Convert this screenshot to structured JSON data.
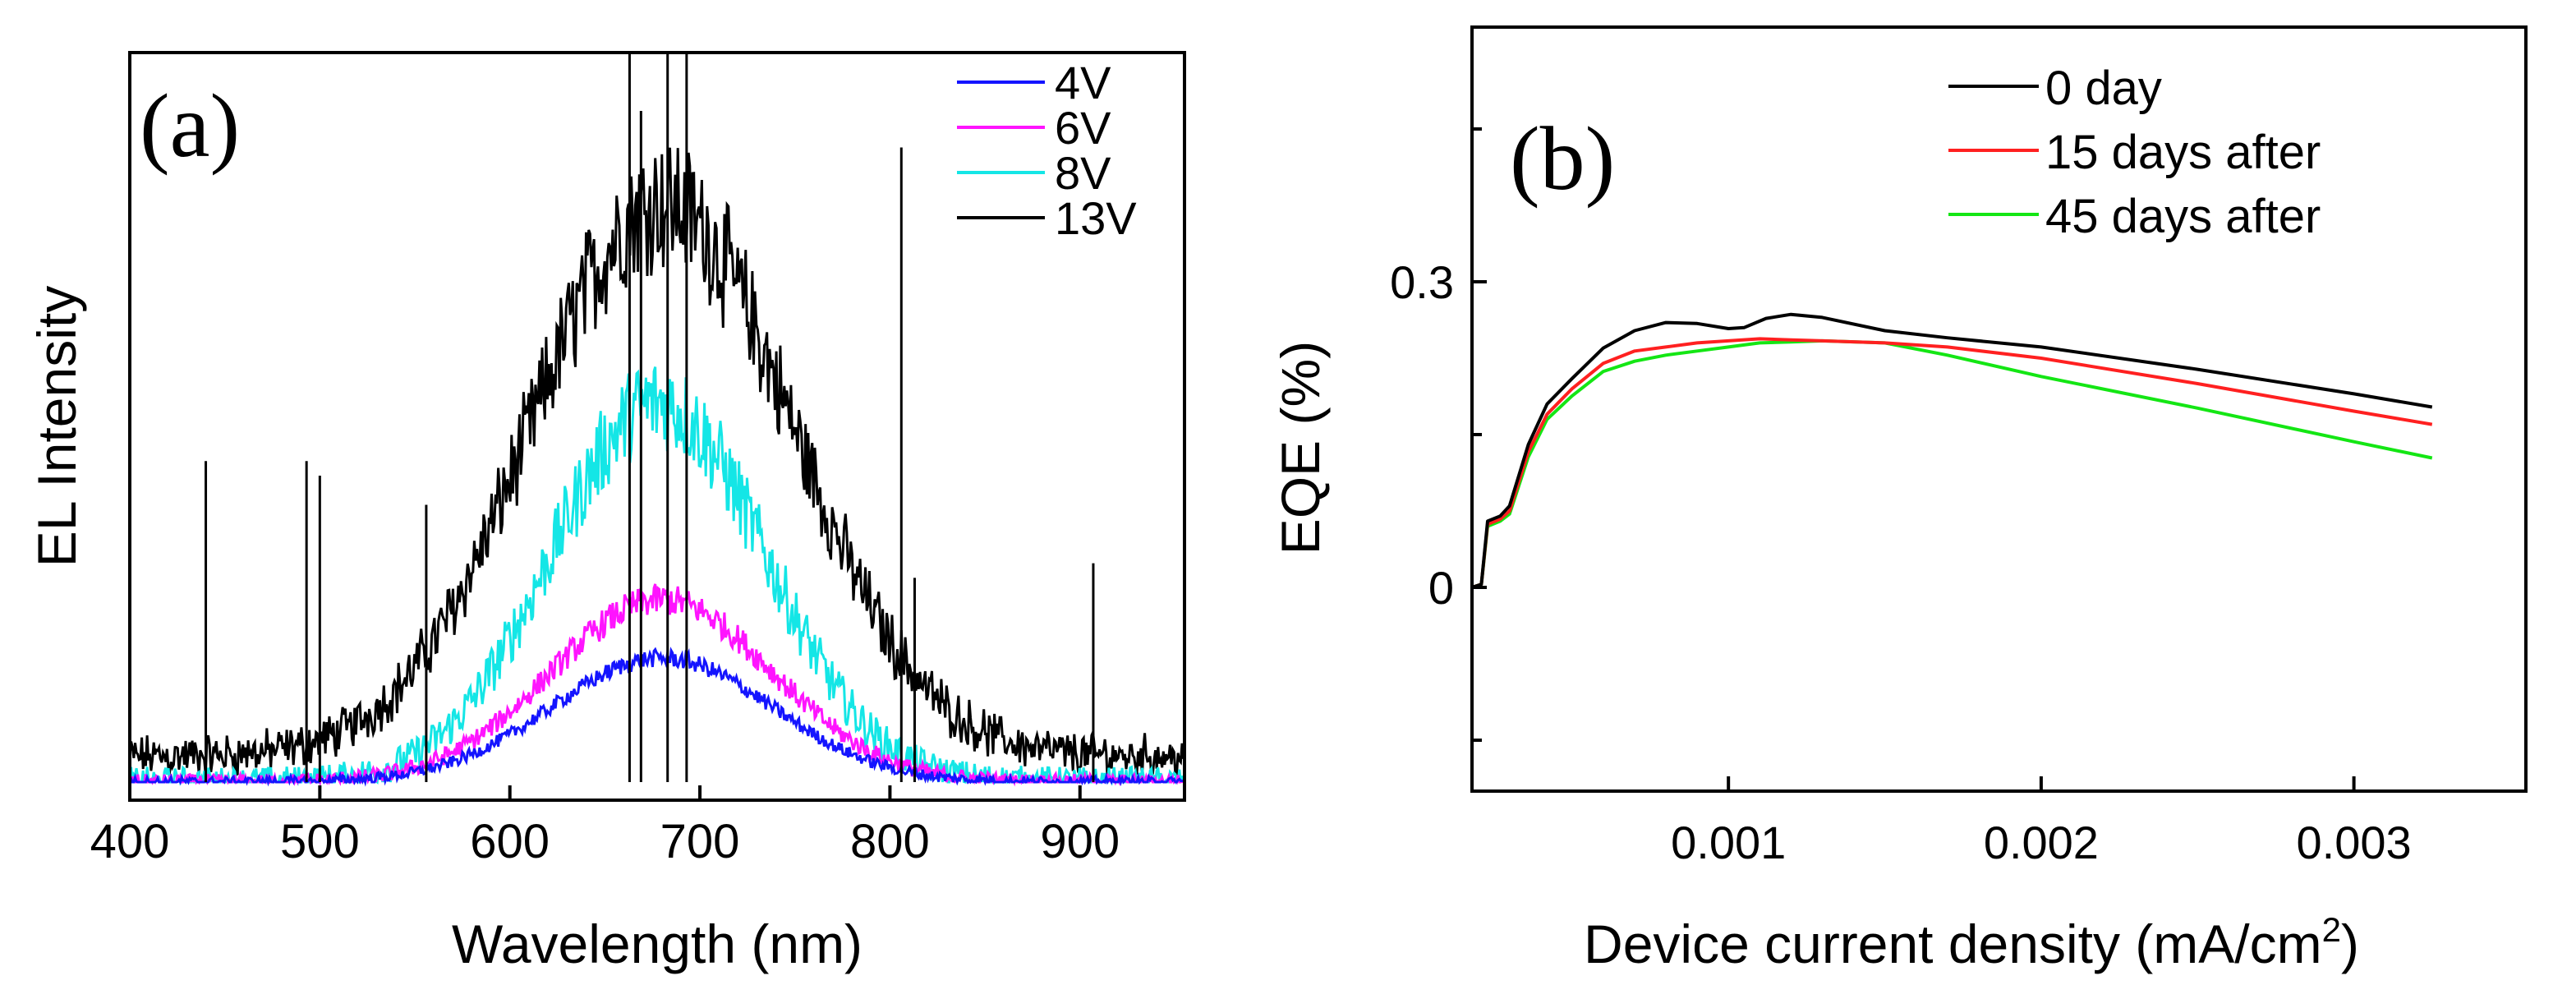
{
  "chart_data": [
    {
      "type": "line",
      "panel_label": "(a)",
      "xlabel": "Wavelength (nm)",
      "ylabel": "EL Intensity",
      "xlim": [
        400,
        955
      ],
      "ylim": [
        0,
        1.0
      ],
      "x_ticks": [
        400,
        500,
        600,
        700,
        800,
        900
      ],
      "legend_position": "top-right",
      "series": [
        {
          "name": "4V",
          "color": "#1414ff",
          "peak_wavelength": 680,
          "width": 58,
          "amplitude": 0.17,
          "noise": 0.012
        },
        {
          "name": "6V",
          "color": "#ff14ff",
          "peak_wavelength": 680,
          "width": 58,
          "amplitude": 0.25,
          "noise": 0.018
        },
        {
          "name": "8V",
          "color": "#14e6e6",
          "peak_wavelength": 678,
          "width": 56,
          "amplitude": 0.52,
          "noise": 0.035
        },
        {
          "name": "13V",
          "color": "#000000",
          "peak_wavelength": 680,
          "width": 68,
          "amplitude": 0.76,
          "noise": 0.035
        }
      ],
      "spikes": [
        {
          "x": 440,
          "height": 0.44
        },
        {
          "x": 493,
          "height": 0.44
        },
        {
          "x": 500,
          "height": 0.42
        },
        {
          "x": 556,
          "height": 0.38
        },
        {
          "x": 663,
          "height": 1.0
        },
        {
          "x": 669,
          "height": 0.92
        },
        {
          "x": 683,
          "height": 1.0
        },
        {
          "x": 693,
          "height": 1.0
        },
        {
          "x": 806,
          "height": 0.87
        },
        {
          "x": 813,
          "height": 0.28
        },
        {
          "x": 907,
          "height": 0.3
        }
      ]
    },
    {
      "type": "line",
      "panel_label": "(b)",
      "xlabel": "Device current density (mA/cm",
      "xlabel_superscript": "2",
      "xlabel_suffix": ")",
      "ylabel": "EQE (%)",
      "xlim": [
        0.00018,
        0.00355
      ],
      "ylim": [
        -0.2,
        0.55
      ],
      "x_ticks": [
        0.001,
        0.002,
        0.003
      ],
      "x_tick_labels": [
        "0.001",
        "0.002",
        "0.003"
      ],
      "y_ticks": [
        0,
        0.3
      ],
      "y_tick_labels": [
        "0",
        "0.3"
      ],
      "y_minor_ticks": [
        -0.15,
        0.15,
        0.45
      ],
      "legend_position": "top-right",
      "series": [
        {
          "name": "0 day",
          "color": "#000000",
          "x": [
            0.00018,
            0.00021,
            0.00023,
            0.00027,
            0.0003,
            0.00036,
            0.00042,
            0.0005,
            0.0006,
            0.0007,
            0.0008,
            0.0009,
            0.001,
            0.00105,
            0.00112,
            0.0012,
            0.0013,
            0.0015,
            0.0017,
            0.002,
            0.0025,
            0.003,
            0.00325
          ],
          "values": [
            0.0,
            0.003,
            0.065,
            0.07,
            0.08,
            0.14,
            0.18,
            0.205,
            0.235,
            0.252,
            0.26,
            0.259,
            0.254,
            0.255,
            0.264,
            0.268,
            0.265,
            0.252,
            0.245,
            0.236,
            0.214,
            0.19,
            0.177
          ]
        },
        {
          "name": "15 days after",
          "color": "#ff2020",
          "x": [
            0.00018,
            0.00021,
            0.00023,
            0.00027,
            0.0003,
            0.00036,
            0.00042,
            0.0005,
            0.0006,
            0.0007,
            0.0008,
            0.0009,
            0.001,
            0.0011,
            0.0012,
            0.0013,
            0.0015,
            0.0017,
            0.002,
            0.0025,
            0.003,
            0.00325
          ],
          "values": [
            0.0,
            0.003,
            0.062,
            0.067,
            0.075,
            0.133,
            0.17,
            0.195,
            0.22,
            0.232,
            0.236,
            0.24,
            0.242,
            0.244,
            0.243,
            0.242,
            0.24,
            0.236,
            0.225,
            0.2,
            0.173,
            0.16
          ]
        },
        {
          "name": "45 days after",
          "color": "#14e614",
          "x": [
            0.00018,
            0.00021,
            0.00023,
            0.00027,
            0.0003,
            0.00036,
            0.00042,
            0.0005,
            0.0006,
            0.0007,
            0.0008,
            0.0009,
            0.001,
            0.0011,
            0.0012,
            0.0013,
            0.0015,
            0.0017,
            0.002,
            0.0025,
            0.003,
            0.00325
          ],
          "values": [
            0.0,
            0.003,
            0.06,
            0.065,
            0.072,
            0.128,
            0.165,
            0.188,
            0.212,
            0.222,
            0.228,
            0.232,
            0.236,
            0.24,
            0.241,
            0.242,
            0.24,
            0.228,
            0.207,
            0.176,
            0.143,
            0.127
          ]
        }
      ]
    }
  ]
}
